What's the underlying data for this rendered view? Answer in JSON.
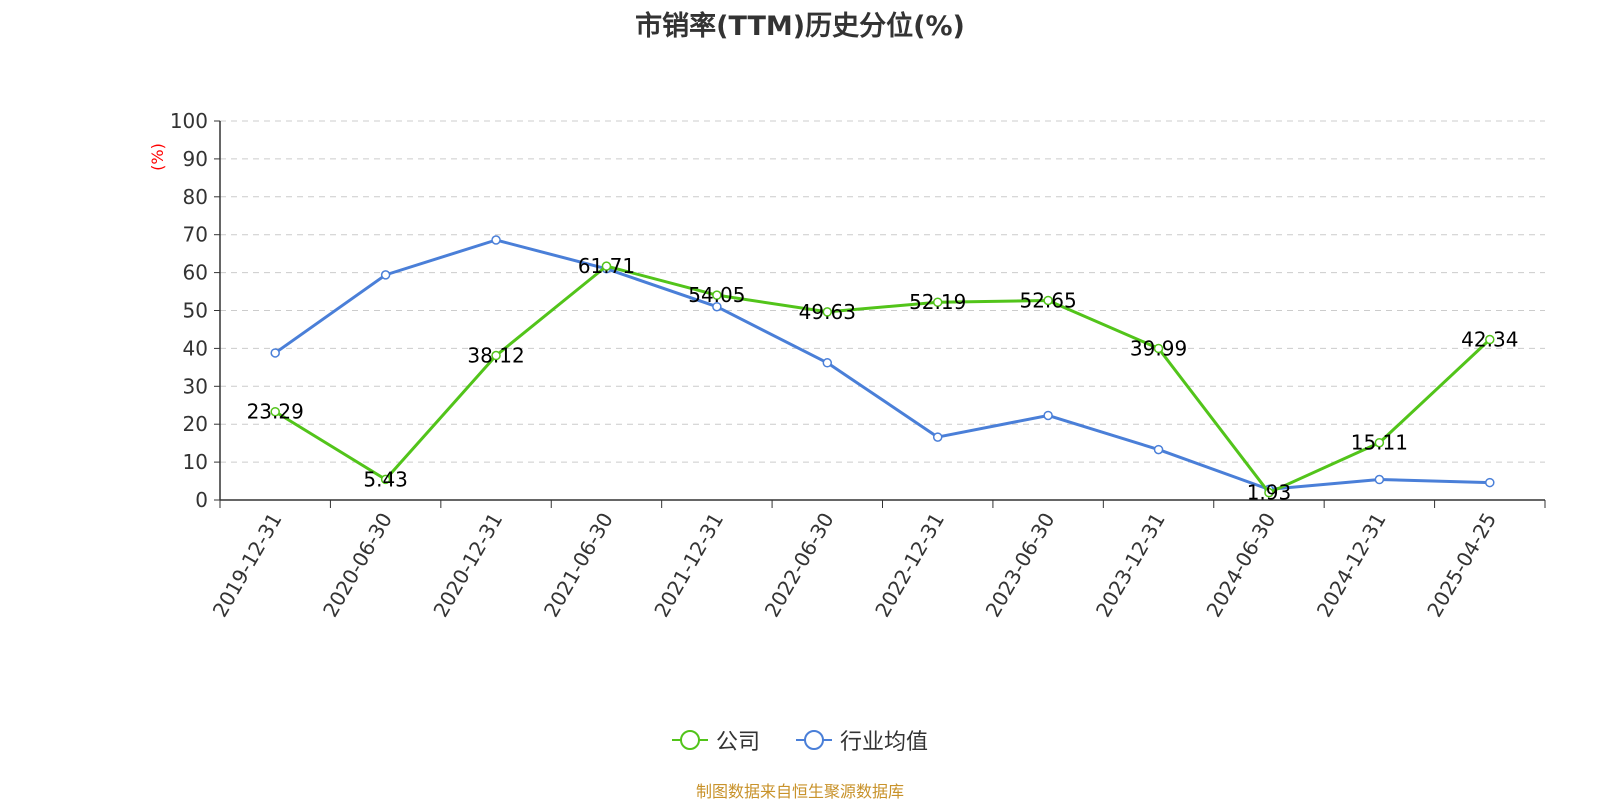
{
  "title": "市销率(TTM)历史分位(%)",
  "source_note": "制图数据来自恒生聚源数据库",
  "colors": {
    "company": "#52c41a",
    "industry": "#4a7fd8",
    "ylabel": "#ff0000",
    "source_note": "#c8922a",
    "grid": "#cccccc"
  },
  "chart_data": {
    "type": "line",
    "title": "市销率(TTM)历史分位(%)",
    "ylabel": "(%)",
    "xlabel": "",
    "ylim": [
      0,
      100
    ],
    "yticks": [
      0,
      10,
      20,
      30,
      40,
      50,
      60,
      70,
      80,
      90,
      100
    ],
    "grid": true,
    "legend_position": "bottom",
    "x": [
      "2019-12-31",
      "2020-06-30",
      "2020-12-31",
      "2021-06-30",
      "2021-12-31",
      "2022-06-30",
      "2022-12-31",
      "2023-06-30",
      "2023-12-31",
      "2024-06-30",
      "2024-12-31",
      "2025-04-25"
    ],
    "series": [
      {
        "name": "公司",
        "color": "#52c41a",
        "values": [
          23.29,
          5.43,
          38.12,
          61.71,
          54.05,
          49.63,
          52.19,
          52.65,
          39.99,
          1.93,
          15.11,
          42.34
        ],
        "data_labels": [
          "23.29",
          "5.43",
          "38.12",
          "61.71",
          "54.05",
          "49.63",
          "52.19",
          "52.65",
          "39.99",
          "1.93",
          "15.11",
          "42.34"
        ]
      },
      {
        "name": "行业均值",
        "color": "#4a7fd8",
        "values": [
          38.8,
          59.4,
          68.6,
          61.0,
          51.0,
          36.2,
          16.6,
          22.3,
          13.3,
          2.8,
          5.4,
          4.6
        ]
      }
    ]
  }
}
